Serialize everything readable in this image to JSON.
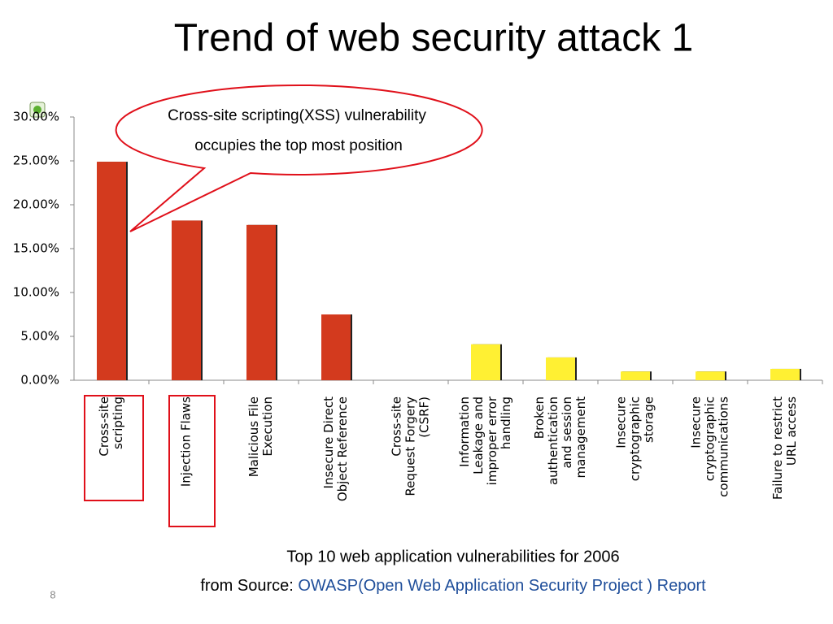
{
  "chart_data": {
    "type": "bar",
    "title": "Trend of web security attack 1",
    "annotations": [
      "Cross-site scripting(XSS) vulnerability",
      "occupies the top most position"
    ],
    "categories": [
      [
        "Cross-site",
        "scripting"
      ],
      [
        "Injection Flaws"
      ],
      [
        "Malicious File",
        "Execution"
      ],
      [
        "Insecure Direct",
        "Object Reference"
      ],
      [
        "Cross-site",
        "Request Forgery",
        "(CSRF)"
      ],
      [
        "Information",
        "Leakage and",
        "improper error",
        "handling"
      ],
      [
        "Broken",
        "authentication",
        "and session",
        "management"
      ],
      [
        "Insecure",
        "cryptographic",
        "storage"
      ],
      [
        "Insecure",
        "cryptographic",
        "communications"
      ],
      [
        "Failure to restrict",
        "URL access"
      ]
    ],
    "values": [
      24.9,
      18.2,
      17.7,
      7.5,
      0,
      4.1,
      2.6,
      1.0,
      1.0,
      1.3
    ],
    "colors": [
      "#d33a1e",
      "#d33a1e",
      "#d33a1e",
      "#d33a1e",
      "#d33a1e",
      "#fff033",
      "#fff033",
      "#fff033",
      "#fff033",
      "#fff033"
    ],
    "ylim": [
      0,
      30
    ],
    "yticks": [
      {
        "value": 0,
        "label": "0.00%"
      },
      {
        "value": 5,
        "label": "5.00%"
      },
      {
        "value": 10,
        "label": "10.00%"
      },
      {
        "value": 15,
        "label": "15.00%"
      },
      {
        "value": 20,
        "label": "20.00%"
      },
      {
        "value": 25,
        "label": "25.00%"
      },
      {
        "value": 30,
        "label": "30.00%"
      }
    ],
    "grid": false
  },
  "caption": "Top 10 web application vulnerabilities for 2006",
  "source_prefix": "from Source: ",
  "source_link": "OWASP(Open Web Application Security Project ) Report",
  "page_number": "8"
}
